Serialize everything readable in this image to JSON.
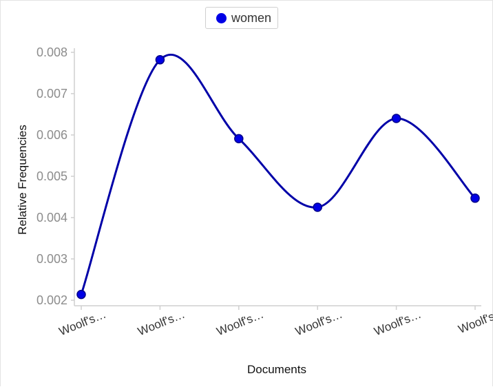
{
  "chart_data": {
    "type": "line",
    "title": "",
    "xlabel": "Documents",
    "ylabel": "Relative Frequencies",
    "categories": [
      "Woolf's…",
      "Woolf's…",
      "Woolf's…",
      "Woolf's…",
      "Woolf's…",
      "Woolf's"
    ],
    "series": [
      {
        "name": "women",
        "color": "#0000e6",
        "line_color": "#0000a8",
        "values": [
          0.00214,
          0.00782,
          0.00591,
          0.00425,
          0.0064,
          0.00447
        ]
      }
    ],
    "ylim": [
      0.0019,
      0.0082
    ],
    "yticks": [
      0.002,
      0.003,
      0.004,
      0.005,
      0.006,
      0.007,
      0.008
    ],
    "ytick_labels": [
      "0.002",
      "0.003",
      "0.004",
      "0.005",
      "0.006",
      "0.007",
      "0.008"
    ],
    "legend_position": "top-center"
  }
}
